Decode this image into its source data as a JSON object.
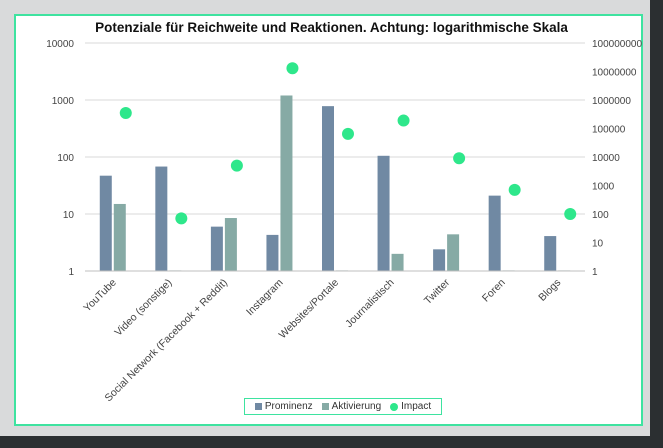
{
  "chart_data": {
    "type": "bar",
    "title": "Potenziale für Reichweite und Reaktionen. Achtung: logarithmische Skala",
    "categories": [
      "YouTube",
      "Video (sonstige)",
      "Social Network (Facebook + Reddit)",
      "Instagram",
      "Websites/Portale",
      "Journalistisch",
      "Twitter",
      "Foren",
      "Blogs"
    ],
    "series": [
      {
        "name": "Prominenz",
        "type": "bar",
        "axis": "left",
        "color": "#7089a3",
        "values": [
          47,
          68,
          6,
          4.3,
          780,
          105,
          2.4,
          21,
          4.1
        ]
      },
      {
        "name": "Aktivierung",
        "type": "bar",
        "axis": "left",
        "color": "#86aaa5",
        "values": [
          15,
          1,
          8.5,
          1200,
          1,
          2,
          4.4,
          1,
          1
        ]
      },
      {
        "name": "Impact",
        "type": "scatter",
        "axis": "right",
        "color": "#2ee78b",
        "values": [
          350000,
          70,
          5000,
          13000000,
          65000,
          190000,
          9000,
          700,
          100
        ]
      }
    ],
    "y_left": {
      "scale": "log",
      "ylim": [
        1,
        10000
      ],
      "ticks": [
        "1",
        "10",
        "100",
        "1000",
        "10000"
      ]
    },
    "y_right": {
      "scale": "log",
      "ylim": [
        1,
        100000000
      ],
      "ticks": [
        "1",
        "10",
        "100",
        "1000",
        "10000",
        "100000",
        "1000000",
        "10000000",
        "100000000"
      ]
    },
    "grid": true,
    "legend": "bottom"
  }
}
